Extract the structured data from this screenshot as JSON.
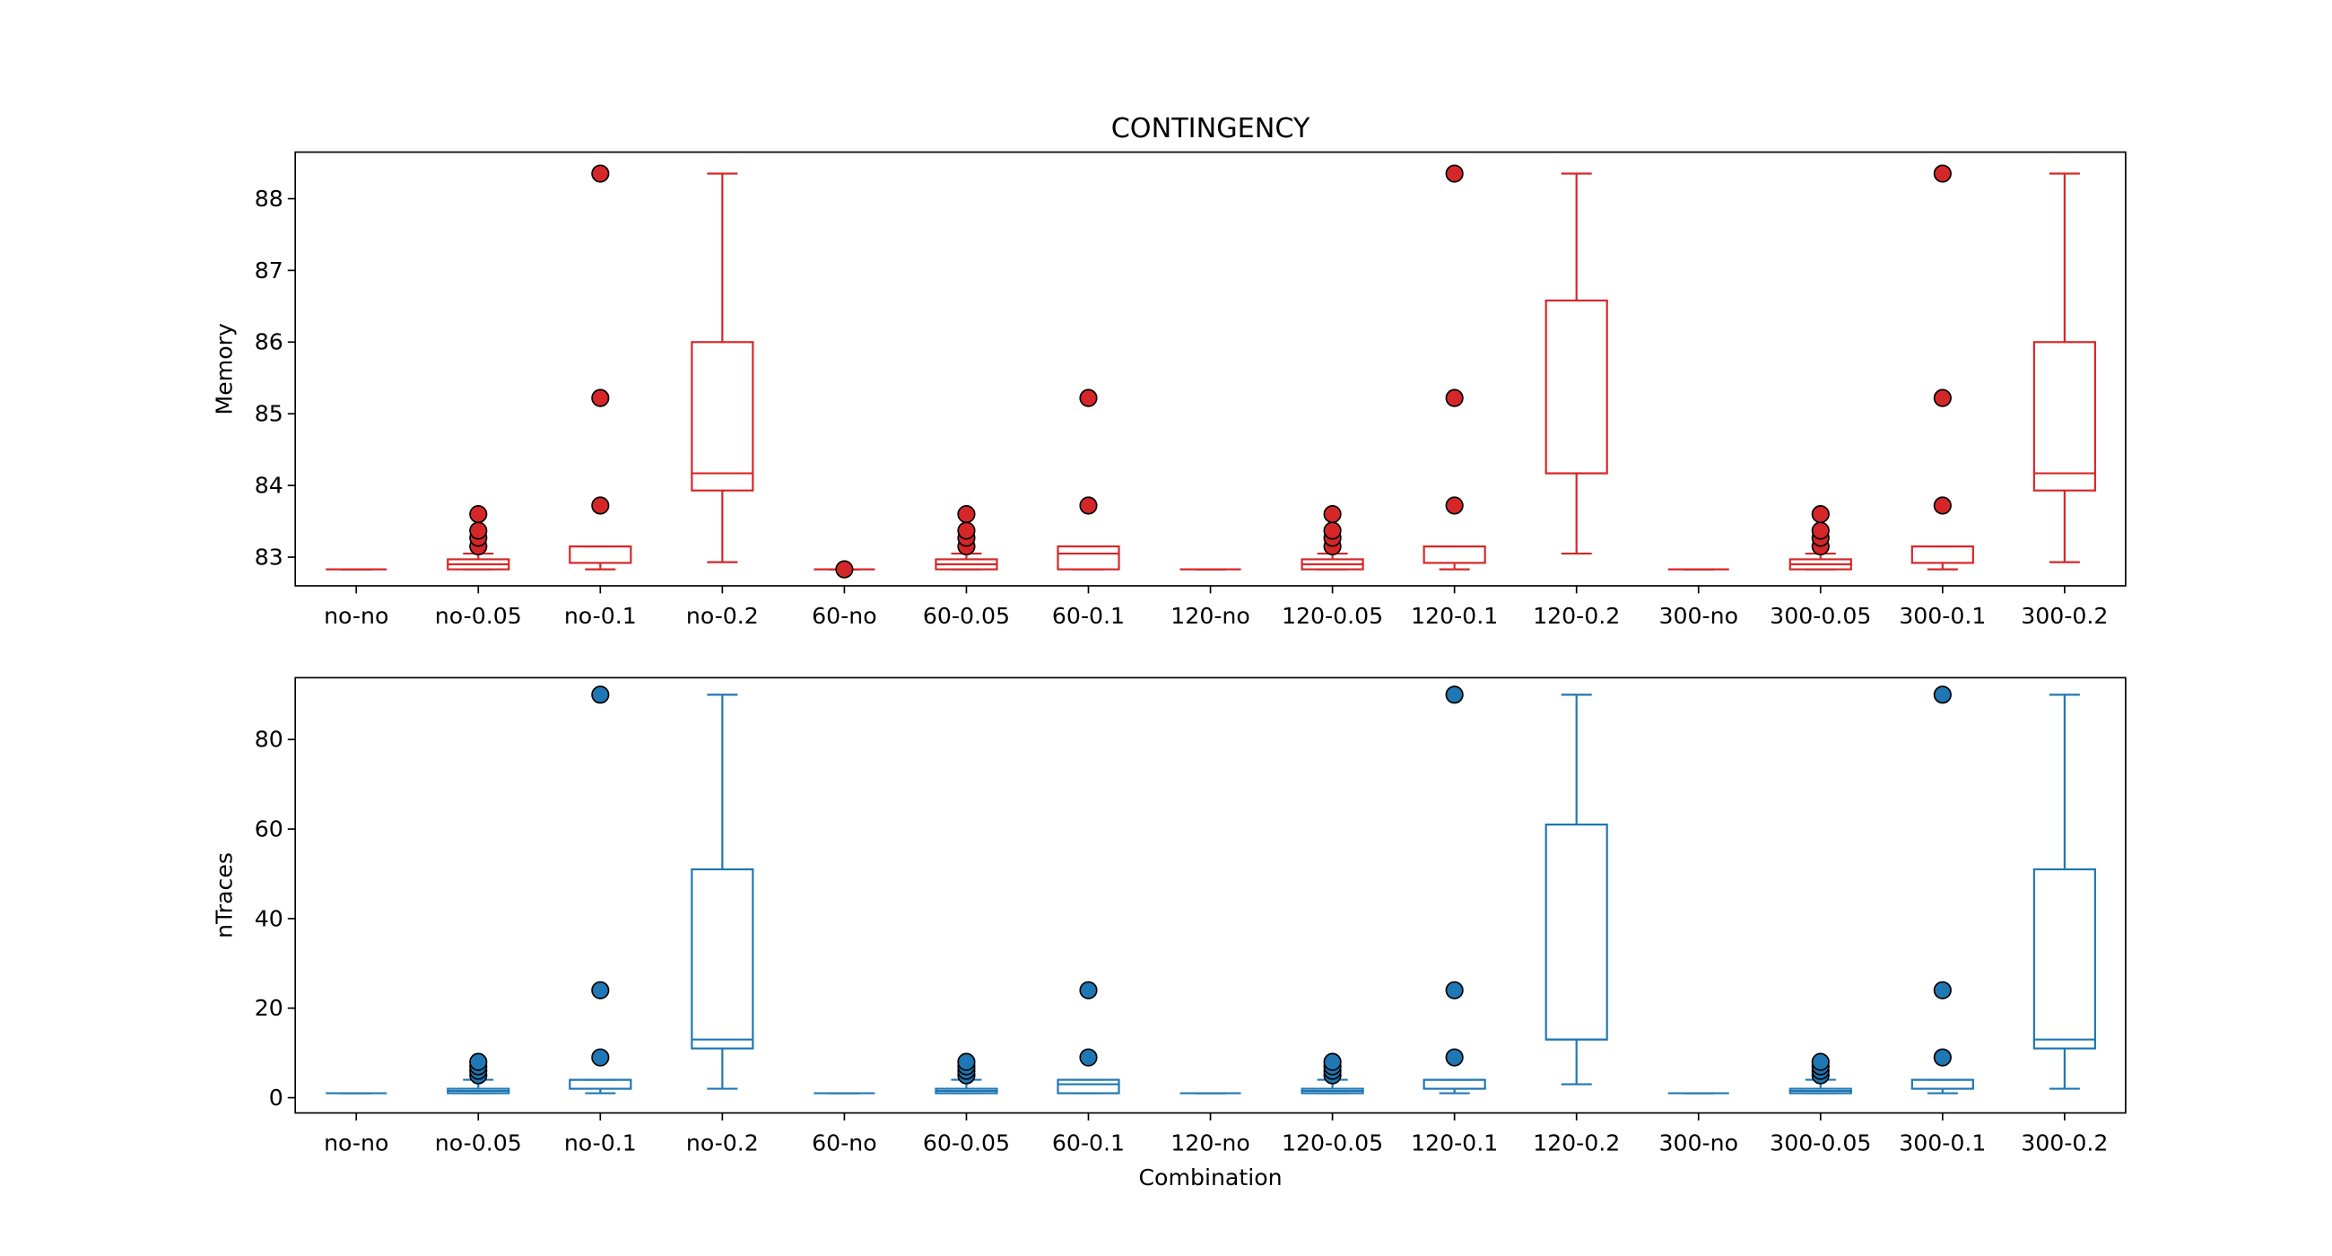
{
  "chart_data": [
    {
      "type": "boxplot",
      "title": "CONTINGENCY",
      "y_label": "Memory",
      "color": "#d62728",
      "categories": [
        "no-no",
        "no-0.05",
        "no-0.1",
        "no-0.2",
        "60-no",
        "60-0.05",
        "60-0.1",
        "120-no",
        "120-0.05",
        "120-0.1",
        "120-0.2",
        "300-no",
        "300-0.05",
        "300-0.1",
        "300-0.2"
      ],
      "ylim": [
        82.6,
        88.65
      ],
      "yticks": [
        83,
        84,
        85,
        86,
        87,
        88
      ],
      "boxes": [
        {
          "whislo": 82.83,
          "q1": 82.83,
          "med": 82.83,
          "q3": 82.83,
          "whishi": 82.83,
          "fliers": []
        },
        {
          "whislo": 82.83,
          "q1": 82.83,
          "med": 82.9,
          "q3": 82.97,
          "whishi": 83.05,
          "fliers": [
            83.15,
            83.27,
            83.37,
            83.6
          ]
        },
        {
          "whislo": 82.83,
          "q1": 82.92,
          "med": 83.15,
          "q3": 83.15,
          "whishi": 83.15,
          "fliers": [
            83.72,
            85.22,
            88.35
          ]
        },
        {
          "whislo": 82.93,
          "q1": 83.93,
          "med": 84.17,
          "q3": 86.0,
          "whishi": 88.35,
          "fliers": []
        },
        {
          "whislo": 82.83,
          "q1": 82.83,
          "med": 82.83,
          "q3": 82.83,
          "whishi": 82.83,
          "fliers": [
            82.83
          ]
        },
        {
          "whislo": 82.83,
          "q1": 82.83,
          "med": 82.9,
          "q3": 82.97,
          "whishi": 83.05,
          "fliers": [
            83.15,
            83.27,
            83.37,
            83.6
          ]
        },
        {
          "whislo": 82.83,
          "q1": 82.83,
          "med": 83.05,
          "q3": 83.15,
          "whishi": 83.15,
          "fliers": [
            83.72,
            85.22
          ]
        },
        {
          "whislo": 82.83,
          "q1": 82.83,
          "med": 82.83,
          "q3": 82.83,
          "whishi": 82.83,
          "fliers": []
        },
        {
          "whislo": 82.83,
          "q1": 82.83,
          "med": 82.9,
          "q3": 82.97,
          "whishi": 83.05,
          "fliers": [
            83.15,
            83.27,
            83.37,
            83.6
          ]
        },
        {
          "whislo": 82.83,
          "q1": 82.92,
          "med": 83.15,
          "q3": 83.15,
          "whishi": 83.15,
          "fliers": [
            83.72,
            85.22,
            88.35
          ]
        },
        {
          "whislo": 83.05,
          "q1": 84.17,
          "med": 84.17,
          "q3": 86.58,
          "whishi": 88.35,
          "fliers": []
        },
        {
          "whislo": 82.83,
          "q1": 82.83,
          "med": 82.83,
          "q3": 82.83,
          "whishi": 82.83,
          "fliers": []
        },
        {
          "whislo": 82.83,
          "q1": 82.83,
          "med": 82.9,
          "q3": 82.97,
          "whishi": 83.05,
          "fliers": [
            83.15,
            83.27,
            83.37,
            83.6
          ]
        },
        {
          "whislo": 82.83,
          "q1": 82.92,
          "med": 83.15,
          "q3": 83.15,
          "whishi": 83.15,
          "fliers": [
            83.72,
            85.22,
            88.35
          ]
        },
        {
          "whislo": 82.93,
          "q1": 83.93,
          "med": 84.17,
          "q3": 86.0,
          "whishi": 88.35,
          "fliers": []
        }
      ]
    },
    {
      "type": "boxplot",
      "y_label": "nTraces",
      "x_label": "Combination",
      "color": "#1f77b4",
      "categories": [
        "no-no",
        "no-0.05",
        "no-0.1",
        "no-0.2",
        "60-no",
        "60-0.05",
        "60-0.1",
        "120-no",
        "120-0.05",
        "120-0.1",
        "120-0.2",
        "300-no",
        "300-0.05",
        "300-0.1",
        "300-0.2"
      ],
      "ylim": [
        -3.4,
        93.8
      ],
      "yticks": [
        0,
        20,
        40,
        60,
        80
      ],
      "boxes": [
        {
          "whislo": 1,
          "q1": 1,
          "med": 1,
          "q3": 1,
          "whishi": 1,
          "fliers": []
        },
        {
          "whislo": 1,
          "q1": 1,
          "med": 1.5,
          "q3": 2,
          "whishi": 4,
          "fliers": [
            5,
            6,
            7,
            8
          ]
        },
        {
          "whislo": 1,
          "q1": 2,
          "med": 4,
          "q3": 4,
          "whishi": 4,
          "fliers": [
            9,
            24,
            90
          ]
        },
        {
          "whislo": 2,
          "q1": 11,
          "med": 13,
          "q3": 51,
          "whishi": 90,
          "fliers": []
        },
        {
          "whislo": 1,
          "q1": 1,
          "med": 1,
          "q3": 1,
          "whishi": 1,
          "fliers": []
        },
        {
          "whislo": 1,
          "q1": 1,
          "med": 1.5,
          "q3": 2,
          "whishi": 4,
          "fliers": [
            5,
            6,
            7,
            8
          ]
        },
        {
          "whislo": 1,
          "q1": 1,
          "med": 3,
          "q3": 4,
          "whishi": 4,
          "fliers": [
            9,
            24
          ]
        },
        {
          "whislo": 1,
          "q1": 1,
          "med": 1,
          "q3": 1,
          "whishi": 1,
          "fliers": []
        },
        {
          "whislo": 1,
          "q1": 1,
          "med": 1.5,
          "q3": 2,
          "whishi": 4,
          "fliers": [
            5,
            6,
            7,
            8
          ]
        },
        {
          "whislo": 1,
          "q1": 2,
          "med": 4,
          "q3": 4,
          "whishi": 4,
          "fliers": [
            9,
            24,
            90
          ]
        },
        {
          "whislo": 3,
          "q1": 13,
          "med": 13,
          "q3": 61,
          "whishi": 90,
          "fliers": []
        },
        {
          "whislo": 1,
          "q1": 1,
          "med": 1,
          "q3": 1,
          "whishi": 1,
          "fliers": []
        },
        {
          "whislo": 1,
          "q1": 1,
          "med": 1.5,
          "q3": 2,
          "whishi": 4,
          "fliers": [
            5,
            6,
            7,
            8
          ]
        },
        {
          "whislo": 1,
          "q1": 2,
          "med": 4,
          "q3": 4,
          "whishi": 4,
          "fliers": [
            9,
            24,
            90
          ]
        },
        {
          "whislo": 2,
          "q1": 11,
          "med": 13,
          "q3": 51,
          "whishi": 90,
          "fliers": []
        }
      ]
    }
  ]
}
